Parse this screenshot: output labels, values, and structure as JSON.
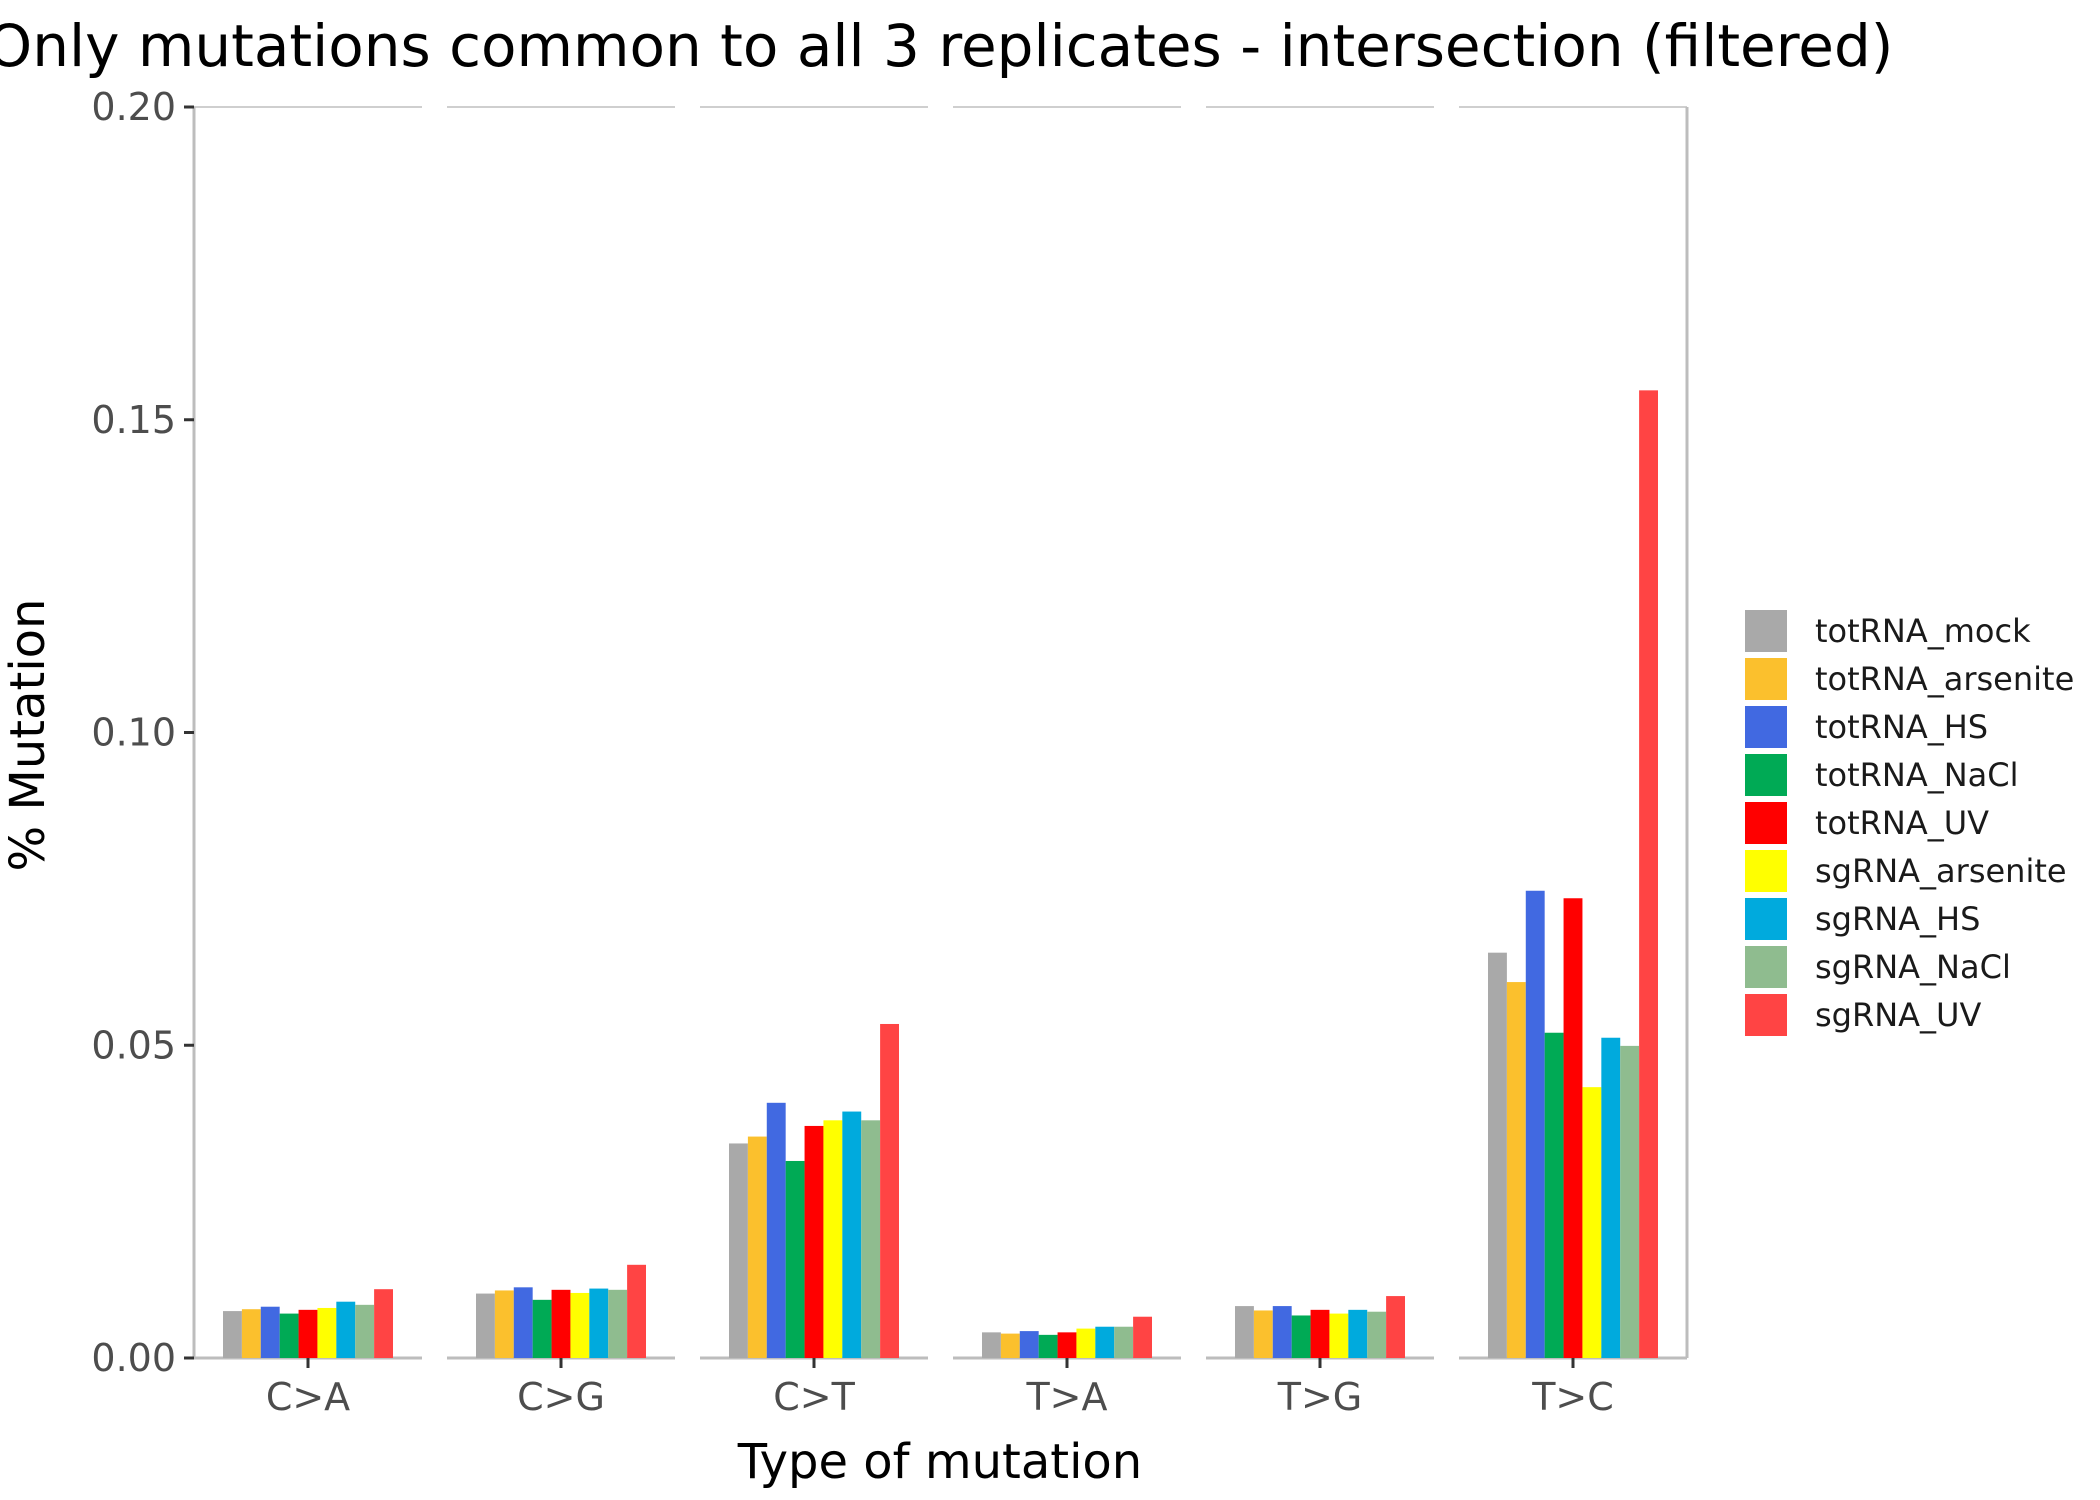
{
  "chart_data": {
    "type": "bar",
    "title": "Only mutations common to all 3 replicates - intersection (filtered)",
    "xlabel": "Type of mutation",
    "ylabel": "% Mutation",
    "ylim": [
      0,
      0.2
    ],
    "yticks": [
      "0.00",
      "0.05",
      "0.10",
      "0.15",
      "0.20"
    ],
    "grid": false,
    "legend_position": "right",
    "categories": [
      "C>A",
      "C>G",
      "C>T",
      "T>A",
      "T>G",
      "T>C"
    ],
    "series": [
      {
        "name": "totRNA_mock",
        "color": "#a9a9a9",
        "values": [
          0.0075,
          0.0103,
          0.0343,
          0.0041,
          0.0083,
          0.0648
        ]
      },
      {
        "name": "totRNA_arsenite",
        "color": "#fbc02d",
        "values": [
          0.0078,
          0.0108,
          0.0354,
          0.0039,
          0.0076,
          0.0601
        ]
      },
      {
        "name": "totRNA_HS",
        "color": "#4169e1",
        "values": [
          0.0082,
          0.0113,
          0.0408,
          0.0043,
          0.0083,
          0.0747
        ]
      },
      {
        "name": "totRNA_NaCl",
        "color": "#00aa55",
        "values": [
          0.0071,
          0.0093,
          0.0315,
          0.0037,
          0.0068,
          0.052
        ]
      },
      {
        "name": "totRNA_UV",
        "color": "#ff0000",
        "values": [
          0.0077,
          0.0109,
          0.0371,
          0.0041,
          0.0077,
          0.0735
        ]
      },
      {
        "name": "sgRNA_arsenite",
        "color": "#ffff00",
        "values": [
          0.008,
          0.0104,
          0.038,
          0.0047,
          0.0071,
          0.0433
        ]
      },
      {
        "name": "sgRNA_HS",
        "color": "#00aadd",
        "values": [
          0.009,
          0.0111,
          0.0394,
          0.005,
          0.0077,
          0.0512
        ]
      },
      {
        "name": "sgRNA_NaCl",
        "color": "#8fbc8f",
        "values": [
          0.0085,
          0.0109,
          0.038,
          0.005,
          0.0074,
          0.0499
        ]
      },
      {
        "name": "sgRNA_UV",
        "color": "#ff4444",
        "values": [
          0.011,
          0.0149,
          0.0534,
          0.0066,
          0.0099,
          0.1547
        ]
      }
    ]
  }
}
